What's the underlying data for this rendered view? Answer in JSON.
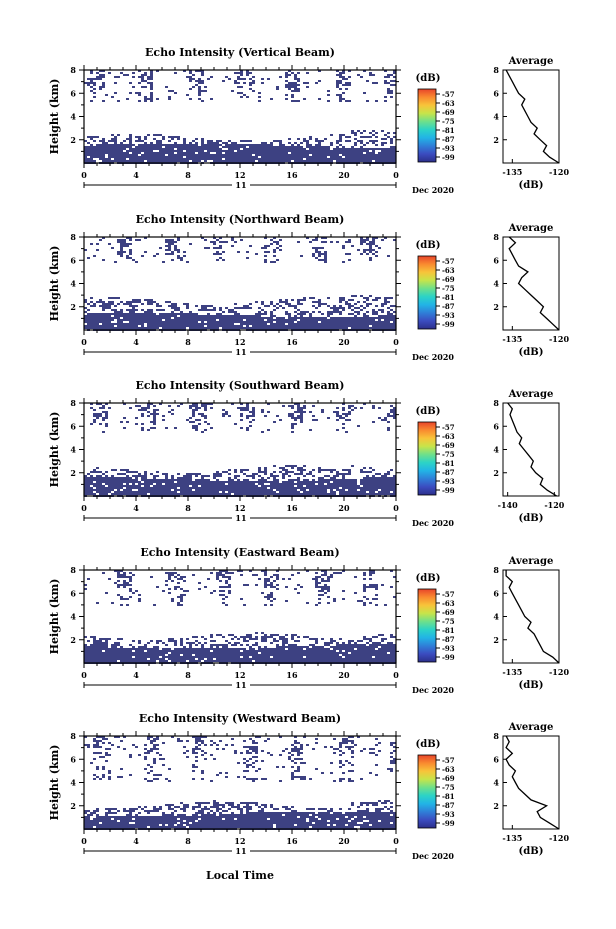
{
  "figure": {
    "xlabel": "Local Time",
    "date_label": "Dec 2020",
    "day_label": "11",
    "colorbar_unit": "(dB)",
    "colorbar_ticks": [
      "-57",
      "-63",
      "-69",
      "-75",
      "-81",
      "-87",
      "-93",
      "-99"
    ],
    "colormap": [
      "#2c2f8a",
      "#3b4cc0",
      "#2f7fd8",
      "#22b4e6",
      "#2cd3c6",
      "#6fe08a",
      "#c7e44a",
      "#f8c43a",
      "#f98a2f",
      "#e8442a"
    ],
    "mask_color": "#3d4182"
  },
  "chart_data": [
    {
      "type": "heatmap",
      "title": "Echo Intensity (Vertical Beam)",
      "ylabel": "Height (km)",
      "xlim": [
        0,
        24
      ],
      "x_ticks": [
        "0",
        "4",
        "8",
        "12",
        "16",
        "20",
        "0"
      ],
      "ylim": [
        0,
        8
      ],
      "y_ticks": [
        "2",
        "4",
        "6",
        "8"
      ],
      "echo_region": {
        "dense_top_km": 1.6,
        "broken_top_km": 2.3,
        "upper_patches_km": [
          5.3,
          7.8
        ]
      },
      "average_profile": {
        "title": "Average",
        "xlabel": "(dB)",
        "xlim": [
          -138,
          -120
        ],
        "x_ticks": [
          "-135",
          "-120"
        ],
        "height_km": [
          0.0,
          0.5,
          1.0,
          1.5,
          2.0,
          2.5,
          3.0,
          3.5,
          4.0,
          4.5,
          5.0,
          5.5,
          6.0,
          6.5,
          7.0,
          7.5,
          8.0
        ],
        "db": [
          -120,
          -123,
          -125,
          -124,
          -126,
          -128,
          -127,
          -129,
          -130,
          -131,
          -132,
          -131,
          -133,
          -134,
          -135,
          -136,
          -137
        ]
      }
    },
    {
      "type": "heatmap",
      "title": "Echo Intensity (Northward Beam)",
      "ylabel": "Height (km)",
      "xlim": [
        0,
        24
      ],
      "x_ticks": [
        "0",
        "4",
        "8",
        "12",
        "16",
        "20",
        "0"
      ],
      "ylim": [
        0,
        8
      ],
      "y_ticks": [
        "2",
        "4",
        "6",
        "8"
      ],
      "echo_region": {
        "dense_top_km": 1.4,
        "broken_top_km": 2.6,
        "upper_patches_km": [
          5.8,
          7.9
        ]
      },
      "average_profile": {
        "title": "Average",
        "xlabel": "(dB)",
        "xlim": [
          -138,
          -120
        ],
        "x_ticks": [
          "-135",
          "-120"
        ],
        "height_km": [
          0.0,
          0.5,
          1.0,
          1.5,
          2.0,
          2.5,
          3.0,
          3.5,
          4.0,
          4.5,
          5.0,
          5.5,
          6.0,
          6.5,
          7.0,
          7.5,
          8.0
        ],
        "db": [
          -120,
          -122,
          -124,
          -126,
          -125,
          -127,
          -129,
          -131,
          -133,
          -132,
          -130,
          -133,
          -134,
          -135,
          -136,
          -134,
          -136
        ]
      }
    },
    {
      "type": "heatmap",
      "title": "Echo Intensity (Southward Beam)",
      "ylabel": "Height (km)",
      "xlim": [
        0,
        24
      ],
      "x_ticks": [
        "0",
        "4",
        "8",
        "12",
        "16",
        "20",
        "0"
      ],
      "ylim": [
        0,
        8
      ],
      "y_ticks": [
        "2",
        "4",
        "6",
        "8"
      ],
      "echo_region": {
        "dense_top_km": 1.6,
        "broken_top_km": 2.4,
        "upper_patches_km": [
          5.5,
          7.9
        ]
      },
      "average_profile": {
        "title": "Average",
        "xlabel": "(dB)",
        "xlim": [
          -142,
          -118
        ],
        "x_ticks": [
          "-140",
          "-120"
        ],
        "height_km": [
          0.0,
          0.5,
          1.0,
          1.5,
          2.0,
          2.5,
          3.0,
          3.5,
          4.0,
          4.5,
          5.0,
          5.5,
          6.0,
          6.5,
          7.0,
          7.5,
          8.0
        ],
        "db": [
          -119,
          -123,
          -126,
          -125,
          -128,
          -130,
          -129,
          -131,
          -133,
          -135,
          -134,
          -136,
          -137,
          -138,
          -139,
          -138,
          -140
        ]
      }
    },
    {
      "type": "heatmap",
      "title": "Echo Intensity (Eastward Beam)",
      "ylabel": "Height (km)",
      "xlim": [
        0,
        24
      ],
      "x_ticks": [
        "0",
        "4",
        "8",
        "12",
        "16",
        "20",
        "0"
      ],
      "ylim": [
        0,
        8
      ],
      "y_ticks": [
        "2",
        "4",
        "6",
        "8"
      ],
      "echo_region": {
        "dense_top_km": 1.5,
        "broken_top_km": 2.4,
        "upper_patches_km": [
          5.0,
          7.9
        ]
      },
      "average_profile": {
        "title": "Average",
        "xlabel": "(dB)",
        "xlim": [
          -138,
          -120
        ],
        "x_ticks": [
          "-135",
          "-120"
        ],
        "height_km": [
          0.0,
          0.5,
          1.0,
          1.5,
          2.0,
          2.5,
          3.0,
          3.5,
          4.0,
          4.5,
          5.0,
          5.5,
          6.0,
          6.5,
          7.0,
          7.5,
          8.0
        ],
        "db": [
          -120,
          -122,
          -125,
          -126,
          -127,
          -128,
          -130,
          -129,
          -131,
          -132,
          -133,
          -134,
          -135,
          -136,
          -135,
          -137,
          -137
        ]
      }
    },
    {
      "type": "heatmap",
      "title": "Echo Intensity (Westward Beam)",
      "ylabel": "Height (km)",
      "xlim": [
        0,
        24
      ],
      "x_ticks": [
        "0",
        "4",
        "8",
        "12",
        "16",
        "20",
        "0"
      ],
      "ylim": [
        0,
        8
      ],
      "y_ticks": [
        "2",
        "4",
        "6",
        "8"
      ],
      "echo_region": {
        "dense_top_km": 1.4,
        "broken_top_km": 2.2,
        "upper_patches_km": [
          4.2,
          7.9
        ]
      },
      "average_profile": {
        "title": "Average",
        "xlabel": "(dB)",
        "xlim": [
          -138,
          -120
        ],
        "x_ticks": [
          "-135",
          "-120"
        ],
        "height_km": [
          0.0,
          0.5,
          1.0,
          1.5,
          2.0,
          2.5,
          3.0,
          3.5,
          4.0,
          4.5,
          5.0,
          5.5,
          6.0,
          6.5,
          7.0,
          7.5,
          8.0
        ],
        "db": [
          -120,
          -123,
          -126,
          -127,
          -124,
          -129,
          -131,
          -133,
          -134,
          -135,
          -134,
          -136,
          -137,
          -135,
          -137,
          -136,
          -137
        ]
      }
    }
  ]
}
